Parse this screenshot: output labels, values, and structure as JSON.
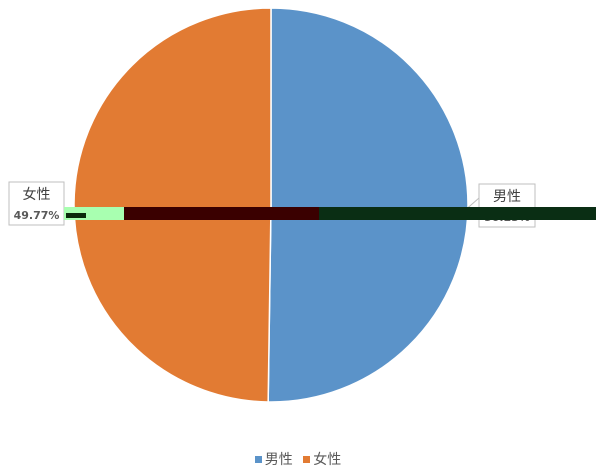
{
  "chart_data": {
    "type": "pie",
    "title": "",
    "series": [
      {
        "slices": [
          {
            "label": "男性",
            "value": 50.23,
            "display_value": "50.23%",
            "color": "#5b93c9"
          },
          {
            "label": "女性",
            "value": 49.77,
            "display_value": "49.77%",
            "color": "#e27b33"
          }
        ]
      }
    ],
    "legend": {
      "position": "bottom",
      "items": [
        "男性",
        "女性"
      ]
    },
    "start_angle": "top (12 o'clock), clockwise"
  }
}
